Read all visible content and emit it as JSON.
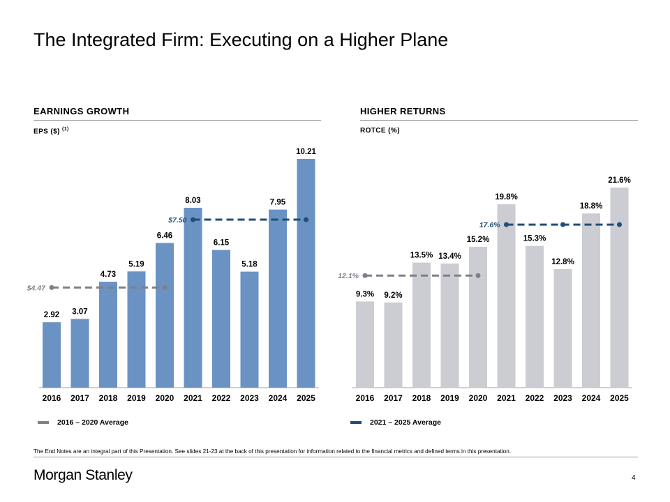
{
  "page": {
    "title": "The Integrated Firm: Executing on a Higher Plane",
    "footnote": "The End Notes are an integral part of this Presentation. See slides 21-23 at the back of this presentation for information related to the financial metrics and defined terms in this presentation.",
    "logo_text": "Morgan Stanley",
    "page_number": "4"
  },
  "left_section": {
    "heading": "EARNINGS GROWTH",
    "sublabel": "EPS ($)",
    "sublabel_sup": "(1)"
  },
  "right_section": {
    "heading": "HIGHER RETURNS",
    "sublabel": "ROTCE (%)"
  },
  "legend": {
    "left": {
      "label": "2016 – 2020 Average",
      "color": "#7f7f8a"
    },
    "right": {
      "label": "2021 – 2025 Average",
      "color": "#1f4e79"
    }
  },
  "colors": {
    "eps_bar": "#6a93c4",
    "rotce_bar": "#cbcdd3",
    "avg_early": "#7f7f8a",
    "avg_late": "#1f4e79",
    "axis": "#a0a0a0"
  },
  "chart_data": [
    {
      "type": "bar",
      "title": "EPS ($)",
      "categories": [
        "2016",
        "2017",
        "2018",
        "2019",
        "2020",
        "2021",
        "2022",
        "2023",
        "2024",
        "2025"
      ],
      "values": [
        2.92,
        3.07,
        4.73,
        5.19,
        6.46,
        8.03,
        6.15,
        5.18,
        7.95,
        10.21
      ],
      "value_labels": [
        "2.92",
        "3.07",
        "4.73",
        "5.19",
        "6.46",
        "8.03",
        "6.15",
        "5.18",
        "7.95",
        "10.21"
      ],
      "ylim": [
        0,
        10.21
      ],
      "averages": [
        {
          "name": "2016 – 2020 Average",
          "value": 4.47,
          "label": "$4.47",
          "from": 0,
          "to": 4
        },
        {
          "name": "2021 – 2025 Average",
          "value": 7.5,
          "label": "$7.50",
          "from": 5,
          "to": 9
        }
      ]
    },
    {
      "type": "bar",
      "title": "ROTCE (%)",
      "categories": [
        "2016",
        "2017",
        "2018",
        "2019",
        "2020",
        "2021",
        "2022",
        "2023",
        "2024",
        "2025"
      ],
      "values": [
        9.3,
        9.2,
        13.5,
        13.4,
        15.2,
        19.8,
        15.3,
        12.8,
        18.8,
        21.6
      ],
      "value_labels": [
        "9.3%",
        "9.2%",
        "13.5%",
        "13.4%",
        "15.2%",
        "19.8%",
        "15.3%",
        "12.8%",
        "18.8%",
        "21.6%"
      ],
      "ylim": [
        0,
        21.6
      ],
      "averages": [
        {
          "name": "2016 – 2020 Average",
          "value": 12.1,
          "label": "12.1%",
          "from": 0,
          "to": 4
        },
        {
          "name": "2021 – 2025 Average",
          "value": 17.6,
          "label": "17.6%",
          "from": 5,
          "to": 9
        }
      ]
    }
  ]
}
